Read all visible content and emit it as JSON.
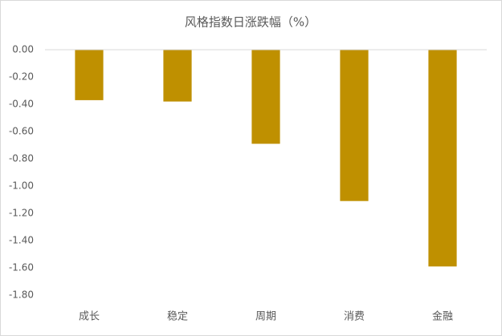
{
  "chart_data": {
    "type": "bar",
    "title": "风格指数日涨跌幅（%）",
    "categories": [
      "成长",
      "稳定",
      "周期",
      "消费",
      "金融"
    ],
    "values": [
      -0.37,
      -0.38,
      -0.69,
      -1.11,
      -1.59
    ],
    "color": "#bf9000",
    "ylim": [
      -1.8,
      0
    ],
    "yticks": [
      {
        "value": 0,
        "label": "0.00"
      },
      {
        "value": -0.2,
        "label": "-0.20"
      },
      {
        "value": -0.4,
        "label": "-0.40"
      },
      {
        "value": -0.6,
        "label": "-0.60"
      },
      {
        "value": -0.8,
        "label": "-0.80"
      },
      {
        "value": -1.0,
        "label": "-1.00"
      },
      {
        "value": -1.2,
        "label": "-1.20"
      },
      {
        "value": -1.4,
        "label": "-1.40"
      },
      {
        "value": -1.6,
        "label": "-1.60"
      },
      {
        "value": -1.8,
        "label": "-1.80"
      }
    ],
    "grid": false
  }
}
